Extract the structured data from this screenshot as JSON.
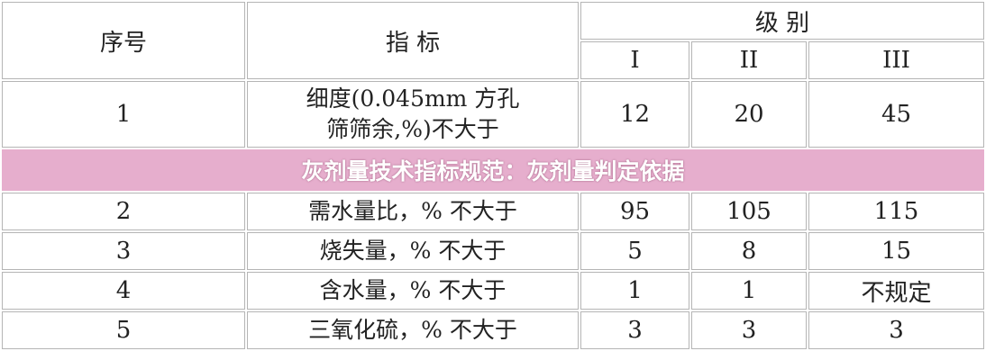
{
  "header": {
    "seq": "序号",
    "indicator": "指 标",
    "grade": "级 别",
    "grades": [
      "I",
      "II",
      "III"
    ]
  },
  "rows": [
    {
      "seq": "1",
      "indicator": "细度(0.045mm 方孔筛筛余,%)不大于",
      "values": [
        "12",
        "20",
        "45"
      ]
    },
    {
      "seq": "2",
      "indicator": "需水量比，% 不大于",
      "values": [
        "95",
        "105",
        "115"
      ]
    },
    {
      "seq": "3",
      "indicator": "烧失量，% 不大于",
      "values": [
        "5",
        "8",
        "15"
      ]
    },
    {
      "seq": "4",
      "indicator": "含水量，% 不大于",
      "values": [
        "1",
        "1",
        "不规定"
      ]
    },
    {
      "seq": "5",
      "indicator": "三氧化硫，% 不大于",
      "values": [
        "3",
        "3",
        "3"
      ]
    }
  ],
  "banner": {
    "title": "灰剂量技术指标规范：灰剂量判定依据",
    "color": "#e2a0c4"
  }
}
